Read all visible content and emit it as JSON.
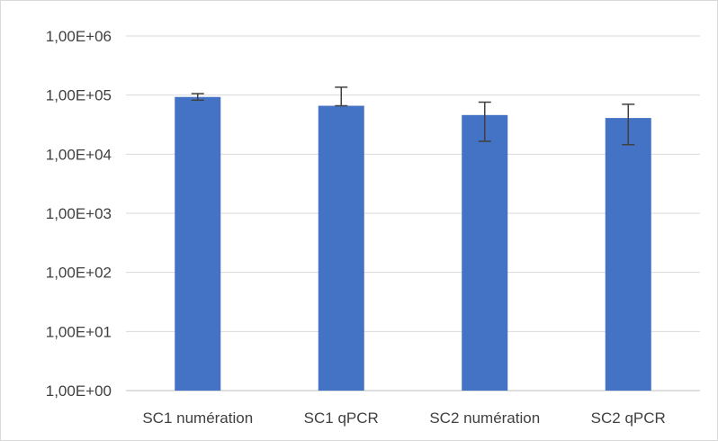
{
  "chart_data": {
    "type": "bar",
    "scale": "log10",
    "ylim": [
      1,
      1000000
    ],
    "yticks": [
      {
        "value": 1,
        "label": "1,00E+00"
      },
      {
        "value": 10,
        "label": "1,00E+01"
      },
      {
        "value": 100,
        "label": "1,00E+02"
      },
      {
        "value": 1000,
        "label": "1,00E+03"
      },
      {
        "value": 10000,
        "label": "1,00E+04"
      },
      {
        "value": 100000,
        "label": "1,00E+05"
      },
      {
        "value": 1000000,
        "label": "1,00E+06"
      }
    ],
    "categories": [
      "SC1 numération",
      "SC1 qPCR",
      "SC2 numération",
      "SC2 qPCR"
    ],
    "values": [
      93000,
      66000,
      46000,
      41000
    ],
    "error_low": [
      82000,
      66000,
      16500,
      14500
    ],
    "error_high": [
      106000,
      136000,
      76000,
      70000
    ],
    "bar_color": "#4472c4",
    "grid": true,
    "legend": "none"
  }
}
